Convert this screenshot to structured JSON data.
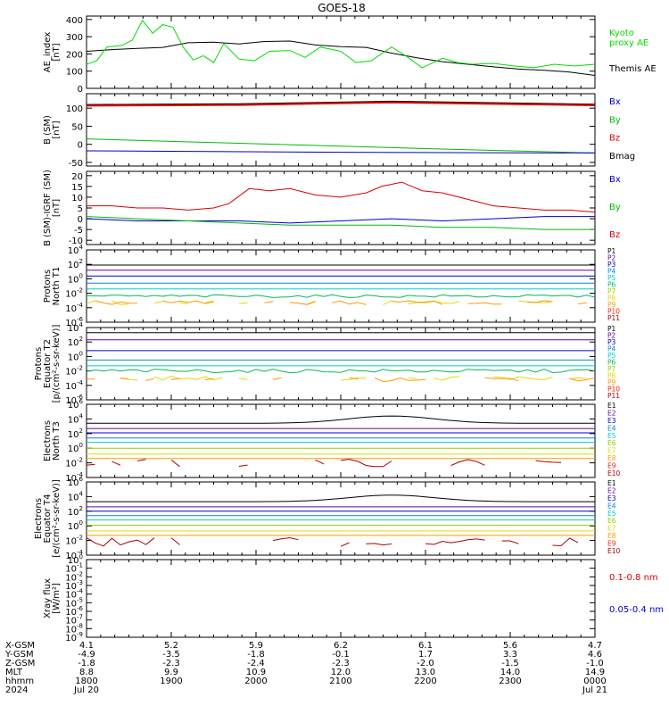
{
  "title": "GOES-18",
  "chart_data": [
    {
      "id": "ae",
      "type": "line",
      "ylabel": [
        "AE_index",
        "[nT]"
      ],
      "ylim": [
        0,
        420
      ],
      "yticks": [
        0,
        100,
        200,
        300,
        400
      ],
      "legend": [
        {
          "label": "Kyoto\nproxy AE",
          "color": "#00dd00"
        },
        {
          "label": "Themis AE",
          "color": "#000000"
        }
      ],
      "series": [
        {
          "name": "Themis AE",
          "color": "#000000",
          "x": [
            0,
            0.05,
            0.1,
            0.15,
            0.2,
            0.25,
            0.3,
            0.35,
            0.4,
            0.45,
            0.5,
            0.55,
            0.6,
            0.65,
            0.7,
            0.75,
            0.8,
            0.85,
            0.9,
            0.95,
            1.0
          ],
          "y": [
            215,
            225,
            232,
            238,
            265,
            268,
            258,
            272,
            275,
            252,
            242,
            238,
            205,
            178,
            155,
            140,
            125,
            112,
            105,
            95,
            75
          ]
        },
        {
          "name": "Kyoto proxy AE",
          "color": "#00dd00",
          "x": [
            0,
            0.02,
            0.04,
            0.07,
            0.09,
            0.11,
            0.13,
            0.15,
            0.17,
            0.19,
            0.21,
            0.23,
            0.25,
            0.27,
            0.3,
            0.33,
            0.36,
            0.4,
            0.43,
            0.46,
            0.5,
            0.53,
            0.56,
            0.6,
            0.63,
            0.66,
            0.7,
            0.73,
            0.76,
            0.8,
            0.84,
            0.88,
            0.92,
            0.96,
            1.0
          ],
          "y": [
            140,
            160,
            240,
            250,
            280,
            395,
            320,
            370,
            355,
            240,
            165,
            190,
            150,
            260,
            170,
            160,
            215,
            220,
            180,
            240,
            215,
            150,
            160,
            240,
            185,
            120,
            175,
            150,
            140,
            145,
            130,
            120,
            140,
            130,
            140
          ]
        }
      ]
    },
    {
      "id": "bsm",
      "type": "line",
      "ylabel": [
        "B (SM)",
        "[nT]"
      ],
      "ylim": [
        -60,
        140
      ],
      "yticks": [
        -50,
        0,
        50,
        100
      ],
      "legend": [
        {
          "label": "Bx",
          "color": "#0000cc"
        },
        {
          "label": "By",
          "color": "#00bb00"
        },
        {
          "label": "Bz",
          "color": "#dd0000"
        },
        {
          "label": "Bmag",
          "color": "#000000"
        }
      ],
      "series": [
        {
          "name": "Bmag",
          "color": "#000000",
          "x": [
            0,
            0.3,
            0.6,
            1.0
          ],
          "y": [
            109,
            111,
            118,
            110
          ]
        },
        {
          "name": "Bz",
          "color": "#dd0000",
          "x": [
            0,
            0.3,
            0.6,
            1.0
          ],
          "y": [
            107,
            109,
            116,
            108
          ]
        },
        {
          "name": "By",
          "color": "#00bb00",
          "x": [
            0,
            0.25,
            0.5,
            0.75,
            1.0
          ],
          "y": [
            15,
            5,
            -5,
            -15,
            -24
          ]
        },
        {
          "name": "Bx",
          "color": "#0000cc",
          "x": [
            0,
            0.5,
            1.0
          ],
          "y": [
            -18,
            -22,
            -24
          ]
        }
      ]
    },
    {
      "id": "bigrf",
      "type": "line",
      "ylabel": [
        "B (SM)-IGRF (SM)",
        "[nT]"
      ],
      "ylim": [
        -12,
        22
      ],
      "yticks": [
        -10,
        -5,
        0,
        5,
        10,
        15,
        20
      ],
      "legend": [
        {
          "label": "Bx",
          "color": "#0000cc"
        },
        {
          "label": "By",
          "color": "#00bb00"
        },
        {
          "label": "Bz",
          "color": "#dd0000"
        }
      ],
      "series": [
        {
          "name": "Bz",
          "color": "#dd0000",
          "x": [
            0,
            0.05,
            0.1,
            0.15,
            0.2,
            0.25,
            0.28,
            0.32,
            0.36,
            0.4,
            0.45,
            0.5,
            0.55,
            0.58,
            0.62,
            0.66,
            0.7,
            0.75,
            0.8,
            0.85,
            0.9,
            0.95,
            1.0
          ],
          "y": [
            6,
            6,
            5,
            5,
            4,
            5,
            7,
            14,
            13,
            14,
            11,
            10,
            12,
            15,
            17,
            13,
            12,
            9,
            6,
            5,
            4,
            4,
            3
          ]
        },
        {
          "name": "Bx",
          "color": "#0000cc",
          "x": [
            0,
            0.1,
            0.2,
            0.3,
            0.4,
            0.5,
            0.6,
            0.7,
            0.8,
            0.9,
            1.0
          ],
          "y": [
            0,
            -1,
            -1,
            -1,
            -2,
            -1,
            0,
            -1,
            0,
            1,
            1
          ]
        },
        {
          "name": "By",
          "color": "#00bb00",
          "x": [
            0,
            0.1,
            0.2,
            0.3,
            0.4,
            0.5,
            0.6,
            0.7,
            0.8,
            0.9,
            1.0
          ],
          "y": [
            1,
            0,
            -1,
            -2,
            -3,
            -3,
            -3,
            -4,
            -4,
            -5,
            -5
          ]
        }
      ]
    },
    {
      "id": "protN",
      "type": "line",
      "log": true,
      "ylabel": [
        "Protons",
        "North T1"
      ],
      "ylim": [
        -6,
        4
      ],
      "yticks": [
        -6,
        -4,
        -2,
        0,
        2,
        4
      ],
      "legend": [
        {
          "label": "P1",
          "color": "#000000"
        },
        {
          "label": "P2",
          "color": "#6600aa"
        },
        {
          "label": "P3",
          "color": "#0000cc"
        },
        {
          "label": "P4",
          "color": "#0088dd"
        },
        {
          "label": "P5",
          "color": "#00cccc"
        },
        {
          "label": "P6",
          "color": "#00bb55"
        },
        {
          "label": "P7",
          "color": "#99cc00"
        },
        {
          "label": "P8",
          "color": "#dddd00"
        },
        {
          "label": "P9",
          "color": "#ff9900"
        },
        {
          "label": "P10",
          "color": "#ee2200"
        },
        {
          "label": "P11",
          "color": "#aa0000"
        }
      ],
      "series": [
        {
          "name": "P1",
          "color": "#000000",
          "level": 1.9
        },
        {
          "name": "P2",
          "color": "#6600aa",
          "level": 1.2
        },
        {
          "name": "P3",
          "color": "#0000cc",
          "level": 0.4
        },
        {
          "name": "P4",
          "color": "#0088dd",
          "level": -0.6
        },
        {
          "name": "P5",
          "color": "#00cccc",
          "level": -1.4
        },
        {
          "name": "P6",
          "color": "#00bb55",
          "level": -2.4,
          "noise": 0.2
        },
        {
          "name": "P7",
          "color": "#dddd00",
          "level": -3.3,
          "noise": 0.3,
          "gaps": true
        },
        {
          "name": "P8",
          "color": "#ff9900",
          "level": -3.3,
          "noise": 0.3,
          "gaps": true
        }
      ]
    },
    {
      "id": "protE",
      "type": "line",
      "log": true,
      "ylabel": [
        "Protons",
        "Equator T2",
        "[p/(cm²-s-sr-keV)]"
      ],
      "ylim": [
        -6,
        4
      ],
      "yticks": [
        -6,
        -4,
        -2,
        0,
        2,
        4
      ],
      "legend": [
        {
          "label": "P1",
          "color": "#000000"
        },
        {
          "label": "P2",
          "color": "#6600aa"
        },
        {
          "label": "P3",
          "color": "#0000cc"
        },
        {
          "label": "P4",
          "color": "#0088dd"
        },
        {
          "label": "P5",
          "color": "#00cccc"
        },
        {
          "label": "P6",
          "color": "#00bb55"
        },
        {
          "label": "P7",
          "color": "#99cc00"
        },
        {
          "label": "P8",
          "color": "#dddd00"
        },
        {
          "label": "P9",
          "color": "#ff9900"
        },
        {
          "label": "P10",
          "color": "#ee2200"
        },
        {
          "label": "P11",
          "color": "#aa0000"
        }
      ],
      "series": [
        {
          "name": "P1",
          "color": "#000000",
          "level": 3.3
        },
        {
          "name": "P2",
          "color": "#6600aa",
          "level": 2.3
        },
        {
          "name": "P3",
          "color": "#0000cc",
          "level": 0.8
        },
        {
          "name": "P4",
          "color": "#0088dd",
          "level": -0.5
        },
        {
          "name": "P5",
          "color": "#00cccc",
          "level": -1.3
        },
        {
          "name": "P6",
          "color": "#00bb55",
          "level": -2.0,
          "noise": 0.25
        },
        {
          "name": "P7",
          "color": "#dddd00",
          "level": -3.0,
          "noise": 0.3,
          "gaps": true
        },
        {
          "name": "P8",
          "color": "#ff9900",
          "level": -3.2,
          "noise": 0.3,
          "gaps": true
        }
      ]
    },
    {
      "id": "elecN",
      "type": "line",
      "log": true,
      "ylabel": [
        "Electrons",
        "North T3"
      ],
      "ylim": [
        -4,
        6
      ],
      "yticks": [
        -4,
        -2,
        0,
        2,
        4,
        6
      ],
      "legend": [
        {
          "label": "E1",
          "color": "#000000"
        },
        {
          "label": "E2",
          "color": "#6600aa"
        },
        {
          "label": "E3",
          "color": "#0000cc"
        },
        {
          "label": "E4",
          "color": "#0088dd"
        },
        {
          "label": "E5",
          "color": "#00cccc"
        },
        {
          "label": "E6",
          "color": "#99cc00"
        },
        {
          "label": "E7",
          "color": "#dddd00"
        },
        {
          "label": "E8",
          "color": "#ff9900"
        },
        {
          "label": "E9",
          "color": "#ee2200"
        },
        {
          "label": "E10",
          "color": "#aa0000"
        }
      ],
      "series": [
        {
          "name": "E1",
          "color": "#000000",
          "level": 3.5,
          "bump": 1.0
        },
        {
          "name": "E2",
          "color": "#6600aa",
          "level": 2.7
        },
        {
          "name": "E3",
          "color": "#0000cc",
          "level": 2.1
        },
        {
          "name": "E4",
          "color": "#0088dd",
          "level": 1.4
        },
        {
          "name": "E5",
          "color": "#00cccc",
          "level": 0.8
        },
        {
          "name": "E6",
          "color": "#99cc00",
          "level": 0.0
        },
        {
          "name": "E7",
          "color": "#dddd00",
          "level": -0.8
        },
        {
          "name": "E8",
          "color": "#ff9900",
          "level": -1.4
        },
        {
          "name": "E10",
          "color": "#aa0000",
          "level": -2.1,
          "noise": 0.6,
          "gaps": true
        }
      ]
    },
    {
      "id": "elecE",
      "type": "line",
      "log": true,
      "ylabel": [
        "Electrons",
        "Equator T4",
        "[e/(cm²-s-sr-keV)]"
      ],
      "ylim": [
        -4,
        6
      ],
      "yticks": [
        -4,
        -2,
        0,
        2,
        4,
        6
      ],
      "legend": [
        {
          "label": "E1",
          "color": "#000000"
        },
        {
          "label": "E2",
          "color": "#6600aa"
        },
        {
          "label": "E3",
          "color": "#0000cc"
        },
        {
          "label": "E4",
          "color": "#0088dd"
        },
        {
          "label": "E5",
          "color": "#00cccc"
        },
        {
          "label": "E6",
          "color": "#99cc00"
        },
        {
          "label": "E7",
          "color": "#dddd00"
        },
        {
          "label": "E8",
          "color": "#ff9900"
        },
        {
          "label": "E9",
          "color": "#ee2200"
        },
        {
          "label": "E10",
          "color": "#aa0000"
        }
      ],
      "series": [
        {
          "name": "E1",
          "color": "#000000",
          "level": 3.4,
          "bump": 0.9
        },
        {
          "name": "E2",
          "color": "#6600aa",
          "level": 2.6
        },
        {
          "name": "E3",
          "color": "#0000cc",
          "level": 2.0
        },
        {
          "name": "E4",
          "color": "#0088dd",
          "level": 1.4
        },
        {
          "name": "E5",
          "color": "#00cccc",
          "level": 0.8
        },
        {
          "name": "E6",
          "color": "#99cc00",
          "level": 0.1
        },
        {
          "name": "E7",
          "color": "#dddd00",
          "level": -0.7
        },
        {
          "name": "E8",
          "color": "#ff9900",
          "level": -1.3
        },
        {
          "name": "E10",
          "color": "#aa0000",
          "level": -2.2,
          "noise": 0.6,
          "gaps": true
        }
      ]
    },
    {
      "id": "xray",
      "type": "line",
      "log": true,
      "ylabel": [
        "Xray flux",
        "[W/m²]"
      ],
      "ylim": [
        -9,
        0
      ],
      "yticks": [
        -9,
        -8,
        -7,
        -6,
        -5,
        -4,
        -3,
        -2,
        -1,
        0
      ],
      "legend": [
        {
          "label": "0.1-0.8 nm",
          "color": "#dd0000"
        },
        {
          "label": "0.05-0.4 nm",
          "color": "#0000cc"
        }
      ],
      "series": []
    }
  ],
  "ephemeris": {
    "labels": [
      "X-GSM",
      "Y-GSM",
      "Z-GSM",
      "MLT",
      "hhmm",
      "2024"
    ],
    "columns": [
      [
        "4.1",
        "-4.9",
        "-1.8",
        "8.8",
        "1800",
        "Jul 20"
      ],
      [
        "5.2",
        "-3.5",
        "-2.3",
        "9.9",
        "1900",
        ""
      ],
      [
        "5.9",
        "-1.8",
        "-2.4",
        "10.9",
        "2000",
        ""
      ],
      [
        "6.2",
        "-0.1",
        "-2.3",
        "12.0",
        "2100",
        ""
      ],
      [
        "6.1",
        "1.7",
        "-2.0",
        "13.0",
        "2200",
        ""
      ],
      [
        "5.6",
        "3.3",
        "-1.5",
        "14.0",
        "2300",
        ""
      ],
      [
        "4.7",
        "4.6",
        "-1.0",
        "14.9",
        "0000",
        "Jul 21"
      ]
    ]
  }
}
